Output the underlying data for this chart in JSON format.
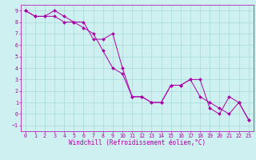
{
  "xlabel": "Windchill (Refroidissement éolien,°C)",
  "bg_color": "#cff0f0",
  "grid_color": "#a8d8d8",
  "line_color": "#aa00aa",
  "line1_x": [
    0,
    1,
    2,
    3,
    4,
    5,
    6,
    7,
    8,
    9,
    10,
    11,
    12,
    13,
    14,
    15,
    16,
    17,
    18,
    19,
    20,
    21,
    22,
    23
  ],
  "line1_y": [
    9.0,
    8.5,
    8.5,
    9.0,
    8.5,
    8.0,
    8.0,
    6.5,
    6.5,
    7.0,
    4.0,
    1.5,
    1.5,
    1.0,
    1.0,
    2.5,
    2.5,
    3.0,
    1.5,
    1.0,
    0.5,
    0.0,
    1.0,
    -0.5
  ],
  "line2_x": [
    0,
    1,
    2,
    3,
    4,
    5,
    6,
    7,
    8,
    9,
    10,
    11,
    12,
    13,
    14,
    15,
    16,
    17,
    18,
    19,
    20,
    21,
    22,
    23
  ],
  "line2_y": [
    9.0,
    8.5,
    8.5,
    8.5,
    8.0,
    8.0,
    7.5,
    7.0,
    5.5,
    4.0,
    3.5,
    1.5,
    1.5,
    1.0,
    1.0,
    2.5,
    2.5,
    3.0,
    3.0,
    0.5,
    0.0,
    1.5,
    1.0,
    -0.5
  ],
  "xlim": [
    -0.5,
    23.5
  ],
  "ylim": [
    -1.5,
    9.5
  ],
  "yticks": [
    -1,
    0,
    1,
    2,
    3,
    4,
    5,
    6,
    7,
    8,
    9
  ],
  "xticks": [
    0,
    1,
    2,
    3,
    4,
    5,
    6,
    7,
    8,
    9,
    10,
    11,
    12,
    13,
    14,
    15,
    16,
    17,
    18,
    19,
    20,
    21,
    22,
    23
  ],
  "xlabel_fontsize": 5.5,
  "tick_fontsize": 4.8,
  "line_width": 0.7,
  "marker_size": 2.0
}
